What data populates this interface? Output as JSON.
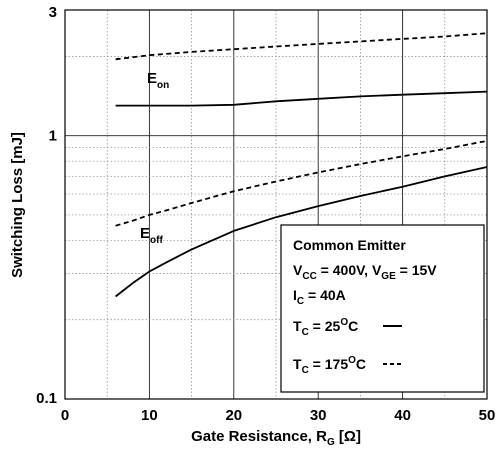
{
  "chart_data": {
    "type": "line",
    "xlabel": "Gate Resistance, R",
    "xlabel_sub": "G",
    "xlabel_unit": " [Ω]",
    "ylabel": "Switching Loss [mJ]",
    "x_ticks": [
      "0",
      "10",
      "20",
      "30",
      "40",
      "50"
    ],
    "y_ticks": [
      "0.1",
      "1",
      "3"
    ],
    "xlim": [
      0,
      50
    ],
    "ylim": [
      0.1,
      3
    ],
    "yscale": "log",
    "grid": true,
    "series": [
      {
        "label": "E",
        "label_sub": "on",
        "tc": "25",
        "x": [
          6,
          10,
          15,
          20,
          25,
          30,
          35,
          40,
          45,
          50
        ],
        "y": [
          1.3,
          1.3,
          1.3,
          1.31,
          1.35,
          1.38,
          1.41,
          1.43,
          1.45,
          1.47
        ]
      },
      {
        "label": "E",
        "label_sub": "on",
        "tc": "175",
        "x": [
          6,
          10,
          15,
          20,
          25,
          30,
          35,
          40,
          45,
          50
        ],
        "y": [
          1.95,
          2.02,
          2.08,
          2.13,
          2.18,
          2.23,
          2.28,
          2.33,
          2.38,
          2.45
        ]
      },
      {
        "label": "E",
        "label_sub": "off",
        "tc": "25",
        "x": [
          6,
          8,
          10,
          12,
          15,
          20,
          25,
          30,
          35,
          40,
          45,
          50
        ],
        "y": [
          0.245,
          0.275,
          0.305,
          0.33,
          0.37,
          0.435,
          0.49,
          0.54,
          0.59,
          0.64,
          0.7,
          0.76
        ]
      },
      {
        "label": "E",
        "label_sub": "off",
        "tc": "175",
        "x": [
          6,
          8,
          10,
          12,
          15,
          20,
          25,
          30,
          35,
          40,
          45,
          50
        ],
        "y": [
          0.455,
          0.475,
          0.5,
          0.52,
          0.555,
          0.615,
          0.67,
          0.725,
          0.78,
          0.835,
          0.89,
          0.955
        ]
      }
    ],
    "legend": {
      "placement": "bottom-right",
      "line1": "Common Emitter",
      "vcc_label": "V",
      "vcc_sub": "CC",
      "vcc_value": " = 400V, ",
      "vge_label": "V",
      "vge_sub": "GE",
      "vge_value": " = 15V",
      "ic_label": "I",
      "ic_sub": "C",
      "ic_value": " = 40A",
      "tc_label": "T",
      "tc_sub": "C",
      "tc_eq": " = ",
      "tc_sup": "O",
      "tc_c": "C",
      "tc1": "25",
      "tc2": "175"
    }
  }
}
